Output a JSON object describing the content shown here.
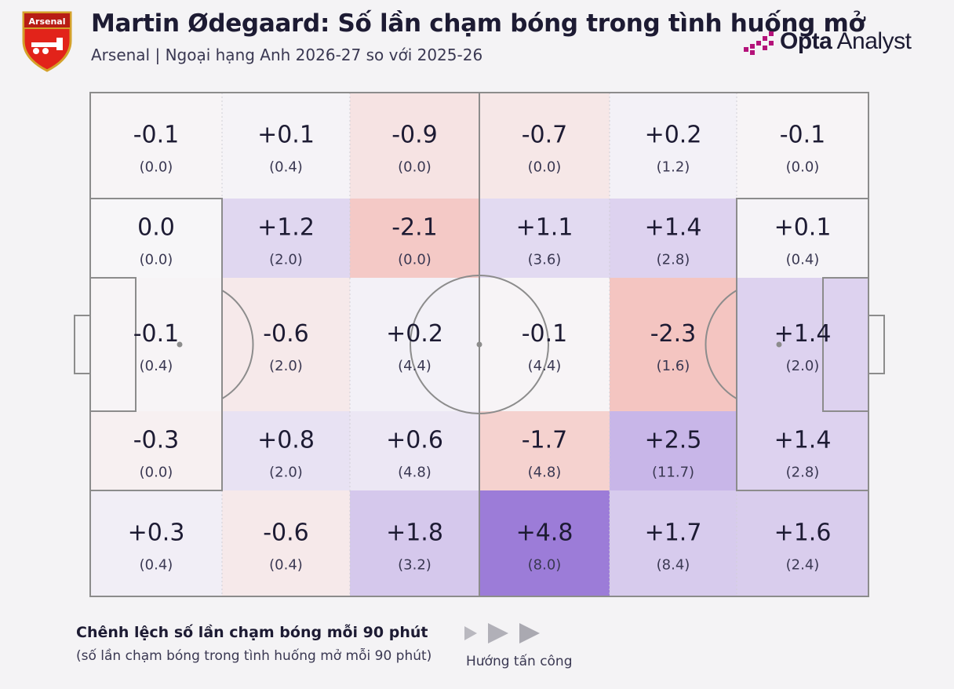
{
  "header": {
    "title": "Martin Ødegaard: Số lần chạm bóng trong tình huống mở",
    "subtitle": "Arsenal | Ngoại hạng Anh 2026-27 so với 2025-26",
    "crest_text": "Arsenal",
    "logo_strong": "Opta",
    "logo_light": " Analyst"
  },
  "legend": {
    "title": "Chênh lệch số lần chạm bóng mỗi 90 phút",
    "subtitle": "(số lần chạm bóng trong tình huống mở mỗi 90 phút)",
    "direction_label": "Hướng tấn công"
  },
  "colors": {
    "positive": "#8a63d2",
    "negative": "#f07a6e",
    "neutral": "#f7f6f8",
    "lines": "#8c8c8c",
    "text": "#1d1b33",
    "crest_red": "#e2231a",
    "crest_gold": "#d4a12a",
    "logo_magenta": "#b4127a"
  },
  "chart_data": {
    "type": "heatmap",
    "title": "Martin Ødegaard: Số lần chạm bóng trong tình huống mở",
    "columns": 6,
    "rows": 5,
    "attack_direction": "left-to-right",
    "cells": [
      [
        {
          "diff": "-0.1",
          "value": "(0.0)",
          "d": -0.1
        },
        {
          "diff": "+0.1",
          "value": "(0.4)",
          "d": 0.1
        },
        {
          "diff": "-0.9",
          "value": "(0.0)",
          "d": -0.9
        },
        {
          "diff": "-0.7",
          "value": "(0.0)",
          "d": -0.7
        },
        {
          "diff": "+0.2",
          "value": "(1.2)",
          "d": 0.2
        },
        {
          "diff": "-0.1",
          "value": "(0.0)",
          "d": -0.1
        }
      ],
      [
        {
          "diff": "0.0",
          "value": "(0.0)",
          "d": 0.0
        },
        {
          "diff": "+1.2",
          "value": "(2.0)",
          "d": 1.2
        },
        {
          "diff": "-2.1",
          "value": "(0.0)",
          "d": -2.1
        },
        {
          "diff": "+1.1",
          "value": "(3.6)",
          "d": 1.1
        },
        {
          "diff": "+1.4",
          "value": "(2.8)",
          "d": 1.4
        },
        {
          "diff": "+0.1",
          "value": "(0.4)",
          "d": 0.1
        }
      ],
      [
        {
          "diff": "-0.1",
          "value": "(0.4)",
          "d": -0.1
        },
        {
          "diff": "-0.6",
          "value": "(2.0)",
          "d": -0.6
        },
        {
          "diff": "+0.2",
          "value": "(4.4)",
          "d": 0.2
        },
        {
          "diff": "-0.1",
          "value": "(4.4)",
          "d": -0.1
        },
        {
          "diff": "-2.3",
          "value": "(1.6)",
          "d": -2.3
        },
        {
          "diff": "+1.4",
          "value": "(2.0)",
          "d": 1.4
        }
      ],
      [
        {
          "diff": "-0.3",
          "value": "(0.0)",
          "d": -0.3
        },
        {
          "diff": "+0.8",
          "value": "(2.0)",
          "d": 0.8
        },
        {
          "diff": "+0.6",
          "value": "(4.8)",
          "d": 0.6
        },
        {
          "diff": "-1.7",
          "value": "(4.8)",
          "d": -1.7
        },
        {
          "diff": "+2.5",
          "value": "(11.7)",
          "d": 2.5
        },
        {
          "diff": "+1.4",
          "value": "(2.8)",
          "d": 1.4
        }
      ],
      [
        {
          "diff": "+0.3",
          "value": "(0.4)",
          "d": 0.3
        },
        {
          "diff": "-0.6",
          "value": "(0.4)",
          "d": -0.6
        },
        {
          "diff": "+1.8",
          "value": "(3.2)",
          "d": 1.8
        },
        {
          "diff": "+4.8",
          "value": "(8.0)",
          "d": 4.8
        },
        {
          "diff": "+1.7",
          "value": "(8.4)",
          "d": 1.7
        },
        {
          "diff": "+1.6",
          "value": "(2.4)",
          "d": 1.6
        }
      ]
    ]
  }
}
